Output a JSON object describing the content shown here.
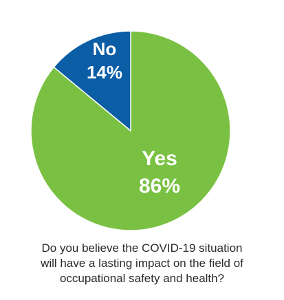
{
  "chart_data": {
    "type": "pie",
    "categories": [
      "Yes",
      "No"
    ],
    "values": [
      86,
      14
    ],
    "value_labels": [
      "86%",
      "14%"
    ],
    "colors": [
      "#7AC143",
      "#0B5DA6"
    ],
    "start": "12 o'clock, clockwise",
    "title": "",
    "caption": [
      "Do you believe the COVID-19 situation",
      "will have a lasting impact on the field of",
      "occupational safety and health?"
    ]
  }
}
